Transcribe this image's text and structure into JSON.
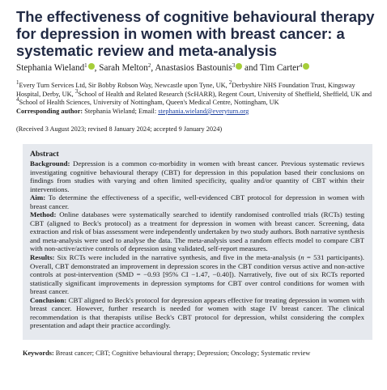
{
  "title": "The effectiveness of cognitive behavioural therapy for depression in women with breast cancer: a systematic review and meta-analysis",
  "authors": [
    {
      "name": "Stephania Wieland",
      "sup": "1",
      "orcid": true,
      "sep": ", "
    },
    {
      "name": "Sarah Melton",
      "sup": "2",
      "orcid": false,
      "sep": ", "
    },
    {
      "name": "Anastasios Bastounis",
      "sup": "3",
      "orcid": true,
      "sep": " and "
    },
    {
      "name": "Tim Carter",
      "sup": "4",
      "orcid": true,
      "sep": ""
    }
  ],
  "affiliations": [
    {
      "sup": "1",
      "text": "Every Turn Services Ltd, Sir Bobby Robson Way, Newcastle upon Tyne, UK, "
    },
    {
      "sup": "2",
      "text": "Derbyshire NHS Foundation Trust, Kingsway Hospital, Derby, UK, "
    },
    {
      "sup": "3",
      "text": "School of Health and Related Research (ScHARR), Regent Court, University of Sheffield, Sheffield, UK and "
    },
    {
      "sup": "4",
      "text": "School of Health Sciences, University of Nottingham, Queen's Medical Centre, Nottingham, UK"
    }
  ],
  "corresponding": {
    "label": "Corresponding author:",
    "text": " Stephania Wieland; Email: ",
    "email": "stephania.wieland@everyturn.org"
  },
  "received": "(Received 3 August 2023; revised 8 January 2024; accepted 9 January 2024)",
  "abstract": {
    "heading": "Abstract",
    "background_label": "Background:",
    "background_text": " Depression is a common co-morbidity in women with breast cancer. Previous systematic reviews investigating cognitive behavioural therapy (CBT) for depression in this population based their conclusions on findings from studies with varying and often limited specificity, quality and/or quantity of CBT within their interventions.",
    "aim_label": "Aim:",
    "aim_text": " To determine the effectiveness of a specific, well-evidenced CBT protocol for depression in women with breast cancer.",
    "method_label": "Method:",
    "method_text": " Online databases were systematically searched to identify randomised controlled trials (RCTs) testing CBT (aligned to Beck's protocol) as a treatment for depression in women with breast cancer. Screening, data extraction and risk of bias assessment were independently undertaken by two study authors. Both narrative synthesis and meta-analysis were used to analyse the data. The meta-analysis used a random effects model to compare CBT with non-active/active controls of depression using validated, self-report measures.",
    "results_label": "Results:",
    "results_text_1": " Six RCTs were included in the narrative synthesis, and five in the meta-analysis (",
    "results_n": "n",
    "results_text_2": " = 531 participants). Overall, CBT demonstrated an improvement in depression scores in the CBT condition versus active and non-active controls at post-intervention (SMD = −0.93 [95% CI −1.47, −0.40]). Narratively, five out of six RCTs reported statistically significant improvements in depression symptoms for CBT over control conditions for women with breast cancer.",
    "conclusion_label": "Conclusion:",
    "conclusion_text": " CBT aligned to Beck's protocol for depression appears effective for treating depression in women with breast cancer. However, further research is needed for women with stage IV breast cancer. The clinical recommendation is that therapists utilise Beck's CBT protocol for depression, whilst considering the complex presentation and adapt their practice accordingly."
  },
  "keywords": {
    "label": "Keywords:",
    "text": " Breast cancer; CBT; Cognitive behavioural therapy; Depression; Oncology; Systematic review"
  }
}
